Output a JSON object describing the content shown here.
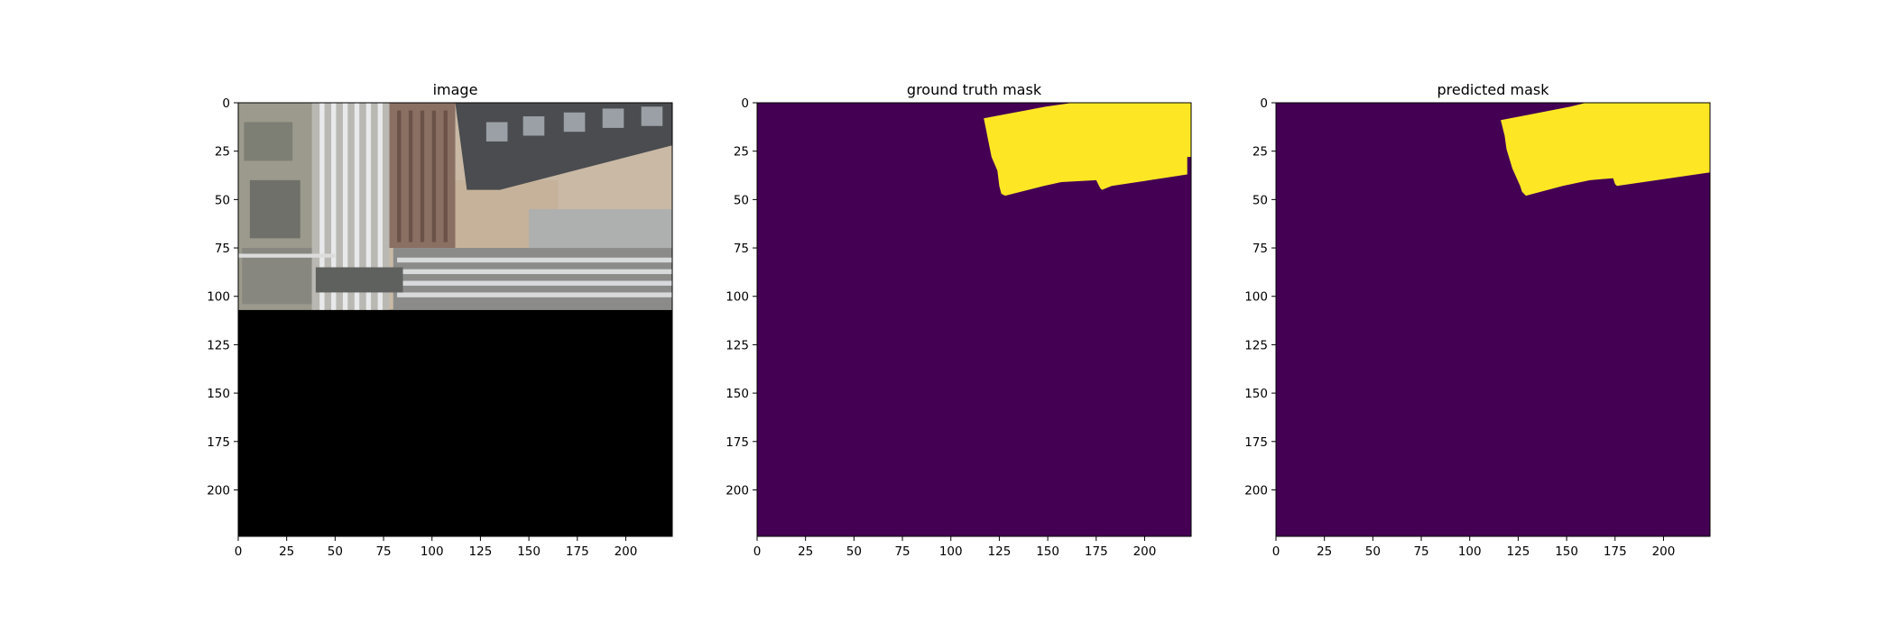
{
  "chart_data": [
    {
      "type": "heatmap",
      "subtype": "image",
      "title": "image",
      "image_width": 224,
      "image_height": 224,
      "xlim": [
        0,
        224
      ],
      "ylim": [
        224,
        0
      ],
      "x_ticks": [
        0,
        25,
        50,
        75,
        100,
        125,
        150,
        175,
        200
      ],
      "y_ticks": [
        0,
        25,
        50,
        75,
        100,
        125,
        150,
        175,
        200
      ],
      "content": "aerial photo of industrial facility in rows 0-107, black padding below",
      "colors": {
        "background": "#000000",
        "ground": "#c9b9a5",
        "roof": "#4a4c4f",
        "pipes": "#d7d9db"
      }
    },
    {
      "type": "heatmap",
      "subtype": "mask",
      "title": "ground truth mask",
      "image_width": 224,
      "image_height": 224,
      "xlim": [
        0,
        224
      ],
      "ylim": [
        224,
        0
      ],
      "x_ticks": [
        0,
        25,
        50,
        75,
        100,
        125,
        150,
        175,
        200
      ],
      "y_ticks": [
        0,
        25,
        50,
        75,
        100,
        125,
        150,
        175,
        200
      ],
      "classes": [
        0,
        1
      ],
      "colors": {
        "0": "#440154",
        "1": "#fde725"
      },
      "region_polygon": [
        [
          117,
          8
        ],
        [
          149,
          2
        ],
        [
          163,
          0
        ],
        [
          224,
          0
        ],
        [
          224,
          28
        ],
        [
          222,
          28
        ],
        [
          222,
          37
        ],
        [
          183,
          43
        ],
        [
          178,
          45
        ],
        [
          177,
          44
        ],
        [
          175,
          40
        ],
        [
          157,
          41
        ],
        [
          148,
          43
        ],
        [
          128,
          48
        ],
        [
          126,
          47
        ],
        [
          125,
          43
        ],
        [
          124,
          35
        ],
        [
          121,
          28
        ],
        [
          119,
          18
        ],
        [
          118,
          13
        ]
      ]
    },
    {
      "type": "heatmap",
      "subtype": "mask",
      "title": "predicted mask",
      "image_width": 224,
      "image_height": 224,
      "xlim": [
        0,
        224
      ],
      "ylim": [
        224,
        0
      ],
      "x_ticks": [
        0,
        25,
        50,
        75,
        100,
        125,
        150,
        175,
        200
      ],
      "y_ticks": [
        0,
        25,
        50,
        75,
        100,
        125,
        150,
        175,
        200
      ],
      "classes": [
        0,
        1
      ],
      "colors": {
        "0": "#440154",
        "1": "#fde725"
      },
      "region_polygon": [
        [
          116,
          9
        ],
        [
          152,
          2
        ],
        [
          160,
          0
        ],
        [
          224,
          0
        ],
        [
          224,
          36
        ],
        [
          210,
          38
        ],
        [
          176,
          43
        ],
        [
          175,
          42
        ],
        [
          174,
          39
        ],
        [
          162,
          40
        ],
        [
          148,
          43
        ],
        [
          129,
          48
        ],
        [
          127,
          46
        ],
        [
          126,
          43
        ],
        [
          122,
          34
        ],
        [
          119,
          24
        ],
        [
          118,
          17
        ]
      ]
    }
  ]
}
